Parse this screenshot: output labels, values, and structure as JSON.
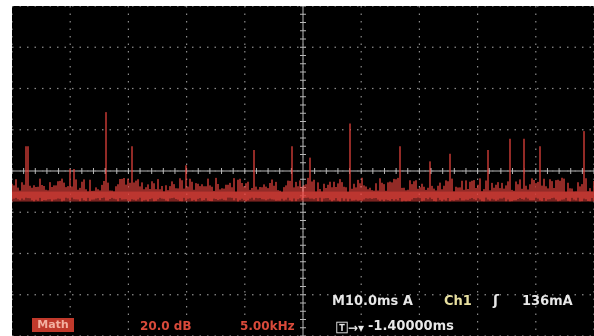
{
  "display": {
    "background": "#000000",
    "grid_color": "#8a8a8a",
    "trace_color": "#e0403a",
    "grid": {
      "divisions_x": 10,
      "divisions_y": 8
    }
  },
  "readouts": {
    "timebase": "M10.0ms",
    "trigger_mode": "A",
    "trigger_source": "Ch1",
    "trigger_slope_icon": "rising-edge-icon",
    "trigger_level": "136mA",
    "math_label": "Math",
    "math_scale": "20.0 dB",
    "math_span": "5.00kHz",
    "trigger_position_icon": "trigger-position-icon",
    "trigger_position": "-1.40000ms"
  },
  "spectrum": {
    "noise_floor_level": 0.37,
    "peak_levels": [
      0.5,
      0.55,
      0.44,
      0.47,
      0.59,
      0.5,
      0.43,
      0.45,
      0.48,
      0.46,
      0.49,
      0.52,
      0.5,
      0.47,
      0.55,
      0.56,
      0.53,
      0.5,
      0.46,
      0.48,
      0.51,
      0.49,
      0.52,
      0.5,
      0.48,
      0.54
    ]
  }
}
